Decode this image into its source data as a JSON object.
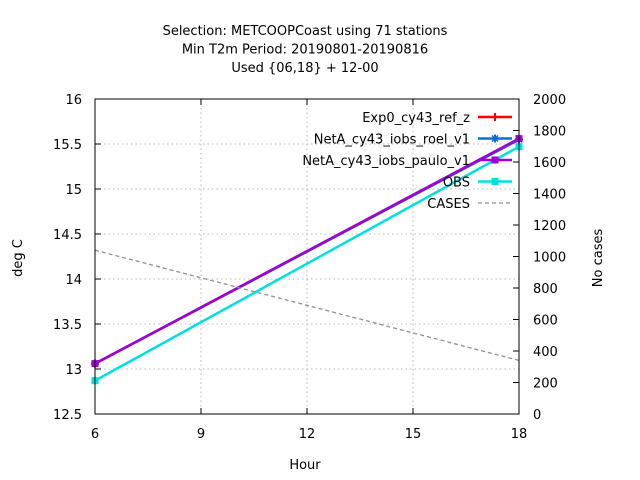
{
  "chart_data": {
    "type": "line",
    "title_lines": [
      "Selection: METCOOPCoast using    71 stations",
      "Min T2m   Period: 20190801-20190816",
      "Used {06,18} + 12-00"
    ],
    "xlabel": "Hour",
    "ylabel": "deg C",
    "y2label": "No cases",
    "xlim": [
      6,
      18
    ],
    "ylim": [
      12.5,
      16
    ],
    "y2lim": [
      0,
      2000
    ],
    "xticks": [
      6,
      9,
      12,
      15,
      18
    ],
    "yticks": [
      12.5,
      13,
      13.5,
      14,
      14.5,
      15,
      15.5,
      16
    ],
    "y2ticks": [
      0,
      200,
      400,
      600,
      800,
      1000,
      1200,
      1400,
      1600,
      1800,
      2000
    ],
    "xtick_labels": [
      "6",
      "9",
      "12",
      "15",
      "18"
    ],
    "ytick_labels": [
      "12.5",
      "13",
      "13.5",
      "14",
      "14.5",
      "15",
      "15.5",
      "16"
    ],
    "y2tick_labels": [
      "0",
      "200",
      "400",
      "600",
      "800",
      "1000",
      "1200",
      "1400",
      "1600",
      "1800",
      "2000"
    ],
    "grid": true,
    "legend_position": "top-right",
    "series": [
      {
        "name": "Exp0_cy43_ref_z",
        "color": "#ff0000",
        "marker": "plus",
        "axis": "y",
        "x": [
          6,
          18
        ],
        "values": [
          13.06,
          15.55
        ]
      },
      {
        "name": "NetA_cy43_iobs_roel_v1",
        "color": "#0070e0",
        "marker": "star",
        "axis": "y",
        "x": [
          6,
          18
        ],
        "values": [
          13.06,
          15.55
        ]
      },
      {
        "name": "NetA_cy43_iobs_paulo_v1",
        "color": "#a000d0",
        "marker": "square",
        "axis": "y",
        "x": [
          6,
          18
        ],
        "values": [
          13.06,
          15.56
        ]
      },
      {
        "name": "OBS",
        "color": "#00dfdf",
        "marker": "square",
        "axis": "y",
        "x": [
          6,
          18
        ],
        "values": [
          12.87,
          15.47
        ]
      },
      {
        "name": "CASES",
        "color": "#909090",
        "marker": "none",
        "dashed": true,
        "axis": "y2",
        "x": [
          6,
          18
        ],
        "values": [
          1040,
          340
        ]
      }
    ]
  }
}
